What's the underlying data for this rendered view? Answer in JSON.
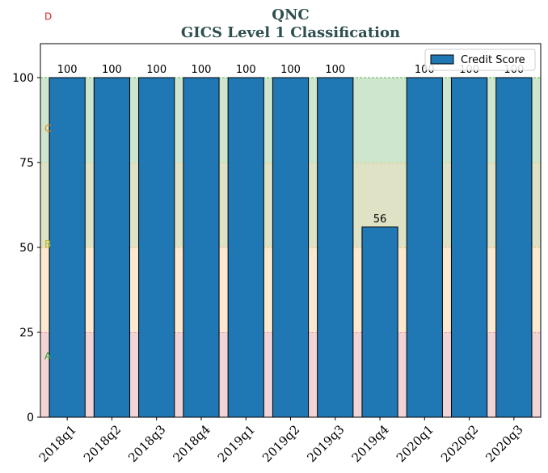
{
  "chart_data": {
    "type": "bar",
    "title": "QNC",
    "subtitle": "GICS Level 1 Classification",
    "xlabel": "",
    "ylabel": "",
    "ylim": [
      0,
      110
    ],
    "yticks": [
      0,
      25,
      50,
      75,
      100
    ],
    "grid": false,
    "legend_position": "top-right",
    "categories": [
      "2018q1",
      "2018q2",
      "2018q3",
      "2018q4",
      "2019q1",
      "2019q2",
      "2019q3",
      "2019q4",
      "2020q1",
      "2020q2",
      "2020q3"
    ],
    "series": [
      {
        "name": "Credit Score",
        "color": "#1f77b4",
        "values": [
          100,
          100,
          100,
          100,
          100,
          100,
          100,
          56,
          100,
          100,
          100
        ],
        "labels": [
          "100",
          "100",
          "100",
          "100",
          "100",
          "100",
          "100",
          "56",
          "100",
          "100",
          "100"
        ]
      }
    ],
    "bands": [
      {
        "label": "A",
        "from": 0,
        "to": 25,
        "color": "#f2d4d6",
        "label_color": "#2ca02c",
        "label_value": 18,
        "line_color": "#d62728"
      },
      {
        "label": "B",
        "from": 25,
        "to": 50,
        "color": "#fde9cf",
        "label_color": "#bcbd22",
        "label_value": 51,
        "line_color": "#ff7f0e"
      },
      {
        "label": "C",
        "from": 50,
        "to": 75,
        "color": "#dfe2c5",
        "label_color": "#ff7f0e",
        "label_value": 85,
        "line_color": "#bcbd22"
      },
      {
        "label": "D",
        "from": 75,
        "to": 100,
        "color": "#cfe6ce",
        "label_color": "#d62728",
        "label_value": 118,
        "line_color": "#2ca02c"
      }
    ]
  }
}
